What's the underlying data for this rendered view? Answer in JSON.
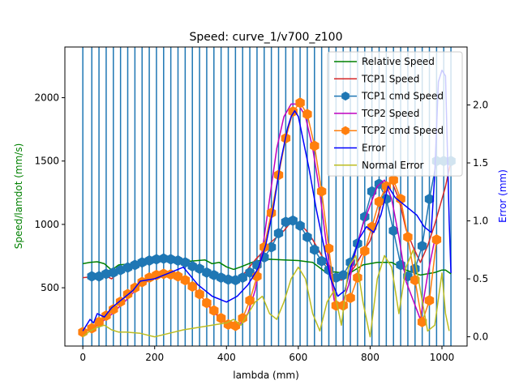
{
  "chart_data": {
    "type": "line",
    "title": "Speed: curve_1/v700_z100",
    "xlabel": "lambda (mm)",
    "ylabel_left": "Speed/lamdot (mm/s)",
    "ylabel_right": "Error (mm)",
    "xlim": [
      -50,
      1070
    ],
    "ylim_left": [
      40,
      2400
    ],
    "ylim_right": [
      -0.08,
      2.5
    ],
    "xticks": [
      0,
      200,
      400,
      600,
      800,
      1000
    ],
    "yticks_left": [
      500,
      1000,
      1500,
      2000
    ],
    "yticks_right": [
      0.0,
      0.5,
      1.0,
      1.5,
      2.0
    ],
    "legend_position": "upper right",
    "breakpoints": [
      0,
      25,
      45,
      65,
      85,
      105,
      125,
      145,
      165,
      185,
      205,
      225,
      245,
      265,
      285,
      305,
      325,
      345,
      365,
      385,
      405,
      425,
      445,
      465,
      485,
      505,
      525,
      545,
      565,
      585,
      605,
      625,
      645,
      665,
      685,
      705,
      725,
      745,
      765,
      785,
      805,
      825,
      845,
      865,
      885,
      905,
      925,
      945,
      965,
      985,
      1005,
      1025
    ],
    "series": [
      {
        "name": "Relative Speed",
        "color": "#008000",
        "axis": "left",
        "marker": "none",
        "x": [
          0,
          20,
          40,
          60,
          80,
          100,
          140,
          180,
          220,
          260,
          300,
          340,
          360,
          380,
          400,
          420,
          440,
          480,
          520,
          560,
          600,
          640,
          680,
          700,
          740,
          780,
          820,
          860,
          900,
          940,
          980,
          1000,
          1010,
          1025
        ],
        "y": [
          690,
          700,
          705,
          690,
          640,
          680,
          690,
          715,
          720,
          720,
          710,
          720,
          690,
          700,
          665,
          645,
          665,
          710,
          725,
          720,
          715,
          700,
          615,
          625,
          610,
          680,
          700,
          700,
          640,
          600,
          620,
          640,
          640,
          610
        ]
      },
      {
        "name": "TCP1 Speed",
        "color": "#d62728",
        "axis": "left",
        "marker": "none",
        "x": [
          0,
          40,
          60,
          80,
          100,
          140,
          180,
          220,
          260,
          300,
          340,
          380,
          420,
          440,
          460,
          480,
          500,
          520,
          540,
          560,
          580,
          600,
          620,
          640,
          660,
          680,
          700,
          720,
          740,
          760,
          780,
          800,
          820,
          840,
          860,
          880,
          900,
          920,
          940,
          960,
          980,
          1000,
          1010,
          1025
        ],
        "y": [
          580,
          590,
          600,
          570,
          620,
          680,
          720,
          730,
          710,
          680,
          630,
          580,
          560,
          580,
          650,
          720,
          780,
          850,
          900,
          950,
          1020,
          1000,
          960,
          880,
          780,
          680,
          580,
          560,
          600,
          680,
          780,
          870,
          1050,
          1250,
          1340,
          1200,
          960,
          820,
          700,
          830,
          1000,
          1200,
          1300,
          1500
        ]
      },
      {
        "name": "TCP1 cmd Speed",
        "color": "#1f77b4",
        "axis": "left",
        "marker": "hexagon",
        "x": [
          25,
          45,
          65,
          85,
          105,
          125,
          145,
          165,
          185,
          205,
          225,
          245,
          265,
          285,
          305,
          325,
          345,
          365,
          385,
          405,
          425,
          445,
          465,
          485,
          505,
          525,
          545,
          565,
          585,
          605,
          625,
          645,
          665,
          685,
          705,
          725,
          745,
          765,
          785,
          805,
          825,
          845,
          865,
          885,
          905,
          925,
          945,
          965,
          985,
          1005,
          1025
        ],
        "y": [
          590,
          590,
          610,
          620,
          640,
          660,
          680,
          700,
          715,
          725,
          730,
          725,
          715,
          700,
          670,
          650,
          620,
          600,
          580,
          565,
          560,
          580,
          620,
          680,
          740,
          820,
          930,
          1020,
          1030,
          990,
          900,
          800,
          710,
          640,
          580,
          600,
          700,
          850,
          1060,
          1260,
          1320,
          1200,
          950,
          680,
          590,
          650,
          830,
          1200,
          1500,
          1500,
          1500
        ]
      },
      {
        "name": "TCP2 Speed",
        "color": "#bf00bf",
        "axis": "left",
        "marker": "none",
        "x": [
          0,
          40,
          80,
          120,
          160,
          200,
          240,
          280,
          320,
          360,
          400,
          440,
          460,
          480,
          500,
          520,
          540,
          560,
          580,
          600,
          620,
          640,
          660,
          680,
          700,
          720,
          740,
          760,
          780,
          800,
          820,
          840,
          860,
          880,
          900,
          920,
          940,
          960,
          980
        ],
        "y": [
          150,
          200,
          290,
          400,
          520,
          580,
          610,
          580,
          470,
          320,
          210,
          220,
          300,
          480,
          800,
          1200,
          1600,
          1850,
          1950,
          1950,
          1850,
          1600,
          1250,
          800,
          400,
          360,
          520,
          800,
          1000,
          1150,
          1300,
          1350,
          1200,
          900,
          550,
          400,
          250,
          600,
          880
        ]
      },
      {
        "name": "TCP2 cmd Speed",
        "color": "#ff7f0e",
        "axis": "left",
        "marker": "hexagon",
        "x": [
          0,
          25,
          45,
          65,
          85,
          105,
          125,
          145,
          165,
          185,
          205,
          225,
          245,
          265,
          285,
          305,
          325,
          345,
          365,
          385,
          405,
          425,
          445,
          465,
          485,
          505,
          525,
          545,
          565,
          585,
          605,
          625,
          645,
          665,
          685,
          705,
          725,
          745,
          765,
          785,
          805,
          825,
          845,
          865,
          885,
          905,
          925,
          945,
          965,
          985
        ],
        "y": [
          150,
          180,
          230,
          280,
          330,
          390,
          450,
          500,
          545,
          580,
          600,
          610,
          605,
          590,
          560,
          510,
          450,
          380,
          320,
          260,
          210,
          200,
          260,
          400,
          590,
          820,
          1090,
          1390,
          1680,
          1890,
          1960,
          1870,
          1620,
          1260,
          810,
          360,
          360,
          420,
          580,
          790,
          980,
          1180,
          1300,
          1350,
          1200,
          900,
          560,
          230,
          400,
          880
        ]
      },
      {
        "name": "Error",
        "color": "#0000ff",
        "axis": "right",
        "marker": "none",
        "x": [
          0,
          10,
          20,
          30,
          40,
          60,
          80,
          100,
          120,
          140,
          160,
          200,
          240,
          280,
          320,
          360,
          400,
          430,
          460,
          490,
          510,
          530,
          550,
          570,
          580,
          590,
          600,
          610,
          620,
          630,
          650,
          670,
          690,
          710,
          730,
          750,
          770,
          790,
          810,
          830,
          850,
          870,
          890,
          910,
          930,
          950,
          970,
          980,
          990,
          1000,
          1010,
          1020,
          1025
        ],
        "y": [
          0.05,
          0.1,
          0.15,
          0.12,
          0.2,
          0.17,
          0.25,
          0.3,
          0.35,
          0.4,
          0.48,
          0.5,
          0.55,
          0.6,
          0.45,
          0.35,
          0.3,
          0.35,
          0.45,
          0.6,
          0.8,
          1.1,
          1.5,
          1.8,
          1.9,
          1.95,
          1.9,
          1.75,
          1.6,
          1.45,
          1.1,
          0.8,
          0.5,
          0.35,
          0.4,
          0.65,
          0.85,
          0.95,
          0.9,
          1.05,
          1.3,
          1.2,
          1.15,
          1.1,
          1.05,
          0.95,
          0.9,
          1.4,
          2.2,
          2.3,
          2.25,
          1.0,
          0.55
        ]
      },
      {
        "name": "Normal Error",
        "color": "#bcbd22",
        "axis": "right",
        "marker": "none",
        "x": [
          0,
          20,
          40,
          60,
          80,
          100,
          120,
          160,
          200,
          240,
          280,
          320,
          360,
          400,
          420,
          440,
          460,
          480,
          500,
          520,
          540,
          560,
          580,
          600,
          620,
          640,
          660,
          680,
          700,
          720,
          740,
          760,
          780,
          800,
          820,
          840,
          860,
          880,
          900,
          920,
          940,
          960,
          980,
          1000,
          1010,
          1020
        ],
        "y": [
          0.0,
          0.05,
          0.08,
          0.1,
          0.06,
          0.04,
          0.04,
          0.03,
          0.0,
          0.03,
          0.06,
          0.08,
          0.1,
          0.12,
          0.15,
          0.1,
          0.2,
          0.3,
          0.35,
          0.2,
          0.15,
          0.3,
          0.5,
          0.6,
          0.5,
          0.2,
          0.05,
          0.3,
          0.4,
          0.1,
          0.6,
          0.7,
          0.3,
          0.0,
          0.5,
          0.7,
          0.6,
          0.2,
          0.6,
          0.75,
          0.4,
          0.05,
          0.1,
          0.55,
          0.2,
          0.05
        ]
      }
    ]
  }
}
